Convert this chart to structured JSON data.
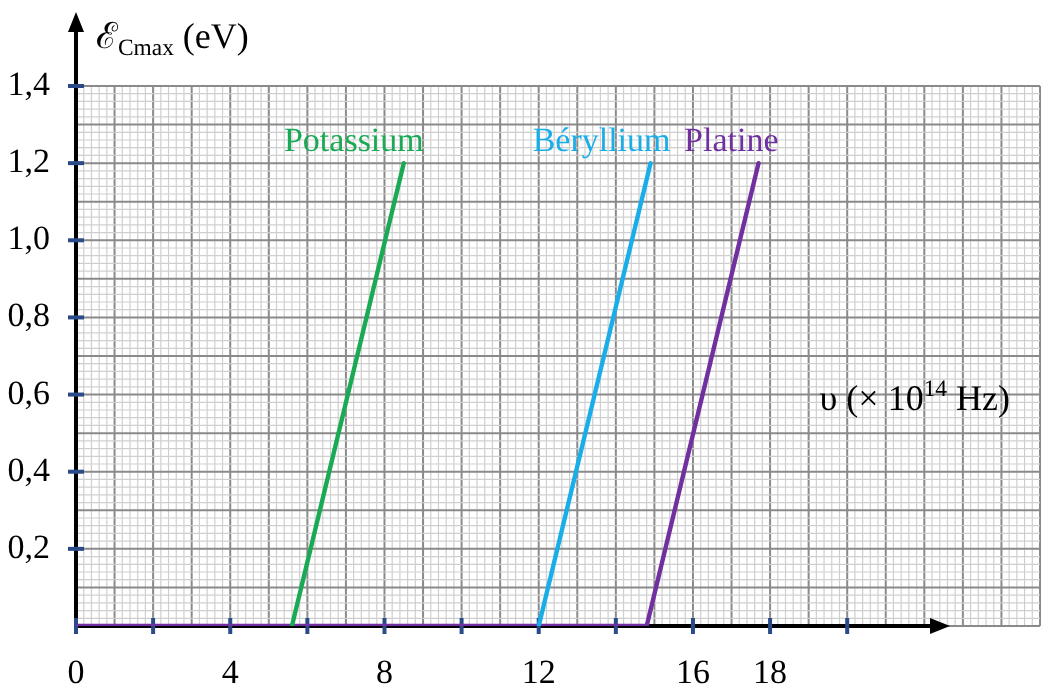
{
  "chart_data": {
    "type": "line",
    "ylabel": "ℰ$_{Cmax}$ (eV)",
    "xlabel": "υ (× 10$^{14}$ Hz)",
    "xlim": [
      0,
      25
    ],
    "ylim": [
      0,
      1.4
    ],
    "xticks": [
      0,
      {
        "value": 2,
        "label": null
      },
      4,
      {
        "value": 6,
        "label": null
      },
      8,
      {
        "value": 10,
        "label": null
      },
      12,
      {
        "value": 14,
        "label": null
      },
      16,
      18,
      {
        "value": 20,
        "label": null
      }
    ],
    "yticks": [
      {
        "value": 0.2,
        "label": "0,2"
      },
      {
        "value": 0.4,
        "label": "0,4"
      },
      {
        "value": 0.6,
        "label": "0,6"
      },
      {
        "value": 0.8,
        "label": "0,8"
      },
      {
        "value": 1.0,
        "label": "1,0"
      },
      {
        "value": 1.2,
        "label": "1,2"
      },
      {
        "value": 1.4,
        "label": "1,4"
      }
    ],
    "grid": true,
    "legend": false,
    "marker": "none",
    "line_style": "solid",
    "series": [
      {
        "name": "Potassium",
        "color": "#1aaa55",
        "x": [
          5.6,
          8.5
        ],
        "values": [
          0,
          1.2
        ]
      },
      {
        "name": "Béryllium",
        "color": "#1aaee8",
        "x": [
          12.0,
          14.9
        ],
        "values": [
          0,
          1.2
        ]
      },
      {
        "name": "Platine",
        "color": "#7030a0",
        "x": [
          0,
          14.8,
          17.7
        ],
        "values": [
          0,
          0,
          1.2
        ]
      }
    ]
  }
}
